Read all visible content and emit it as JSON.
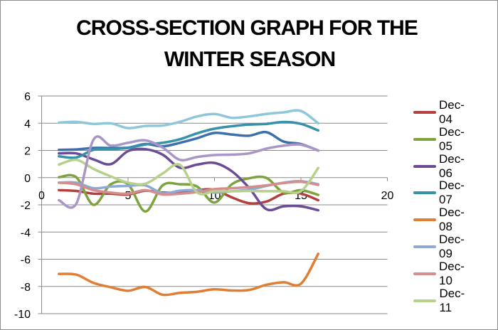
{
  "chart_data": {
    "type": "line",
    "title": [
      "CROSS-SECTION GRAPH FOR THE",
      "WINTER SEASON"
    ],
    "xlabel": "",
    "ylabel": "",
    "xlim": [
      0,
      20
    ],
    "ylim": [
      -10,
      6
    ],
    "xticks": [
      "0",
      "5",
      "10",
      "15",
      "20"
    ],
    "xtick_values": [
      0,
      5,
      10,
      15,
      20
    ],
    "yticks": [
      "6",
      "4",
      "2",
      "0",
      "-2",
      "-4",
      "-6",
      "-8",
      "-10"
    ],
    "ytick_values": [
      6,
      4,
      2,
      0,
      -2,
      -4,
      -6,
      -8,
      -10
    ],
    "grid": "horizontal",
    "smooth": true,
    "legend_position": "right",
    "x": [
      1,
      2,
      3,
      4,
      5,
      6,
      7,
      8,
      9,
      10,
      11,
      12,
      13,
      14,
      15,
      16
    ],
    "series": [
      {
        "name": null,
        "color": "#3E6FAD",
        "values": [
          2.04,
          2.07,
          2.18,
          2.18,
          2.2,
          2.47,
          2.3,
          2.56,
          2.9,
          3.29,
          3.17,
          3.08,
          3.34,
          2.65,
          2.47,
          1.99
        ]
      },
      {
        "name": "Dec-04",
        "color": "#B3403D",
        "values": [
          -0.92,
          -0.98,
          -1.18,
          -1.18,
          -1.24,
          -0.96,
          -1.1,
          -1.1,
          -0.92,
          -0.89,
          -1.45,
          -1.88,
          -1.76,
          -1.18,
          -1.18,
          -1.66
        ]
      },
      {
        "name": "Dec-05",
        "color": "#7EA23F",
        "values": [
          0.03,
          0.03,
          -2.0,
          -0.49,
          -0.49,
          -2.49,
          -0.57,
          -0.49,
          -0.66,
          -1.83,
          -0.49,
          -0.05,
          -0.02,
          -1.1,
          -0.92,
          -1.27
        ]
      },
      {
        "name": "Dec-06",
        "color": "#6B4C94",
        "values": [
          1.78,
          1.78,
          1.34,
          0.99,
          1.95,
          2.09,
          1.69,
          0.73,
          0.96,
          1.08,
          0.47,
          -0.75,
          -2.32,
          -2.11,
          -2.11,
          -2.4
        ]
      },
      {
        "name": "Dec-07",
        "color": "#3592AA",
        "values": [
          1.57,
          1.48,
          2.04,
          2.09,
          2.18,
          2.44,
          2.56,
          2.82,
          3.26,
          3.6,
          3.78,
          3.9,
          3.95,
          4.09,
          3.95,
          3.47
        ]
      },
      {
        "name": "Dec-08",
        "color": "#E07E34",
        "values": [
          -7.08,
          -7.13,
          -7.74,
          -8.06,
          -8.32,
          -8.04,
          -8.61,
          -8.47,
          -8.39,
          -8.21,
          -8.3,
          -8.26,
          -7.88,
          -7.69,
          -7.8,
          -5.6
        ]
      },
      {
        "name": "Dec-09",
        "color": "#8EA9D2",
        "values": [
          -0.37,
          -0.37,
          -0.78,
          -0.66,
          -0.61,
          -0.57,
          -1.15,
          -0.96,
          -0.92,
          -1.1,
          -1.0,
          -0.89,
          -0.61,
          -0.37,
          -0.26,
          -0.49
        ]
      },
      {
        "name": "Dec-10",
        "color": "#D48E8D",
        "values": [
          -0.37,
          -0.49,
          -0.92,
          -1.1,
          -1.18,
          -0.92,
          -1.24,
          -1.18,
          -1.06,
          -0.84,
          -0.78,
          -0.7,
          -0.57,
          -0.4,
          -0.31,
          -0.54
        ]
      },
      {
        "name": "Dec-11",
        "color": "#B7D18D",
        "values": [
          0.96,
          1.31,
          0.64,
          0.09,
          -0.37,
          -0.45,
          0.3,
          0.94,
          -1.1,
          -1.0,
          -1.0,
          -0.98,
          -1.0,
          -1.0,
          -1.0,
          0.71
        ]
      },
      {
        "name": null,
        "color": "#A996C6",
        "values": [
          -1.66,
          -1.93,
          2.79,
          2.35,
          2.56,
          2.74,
          2.21,
          1.31,
          1.52,
          1.66,
          1.69,
          1.78,
          2.13,
          2.35,
          2.42,
          1.99
        ]
      },
      {
        "name": null,
        "color": "#8EC7DA",
        "values": [
          4.04,
          4.1,
          3.95,
          3.99,
          3.64,
          3.8,
          3.83,
          4.1,
          4.5,
          4.68,
          4.4,
          4.5,
          4.68,
          4.8,
          4.9,
          3.99
        ]
      }
    ]
  }
}
